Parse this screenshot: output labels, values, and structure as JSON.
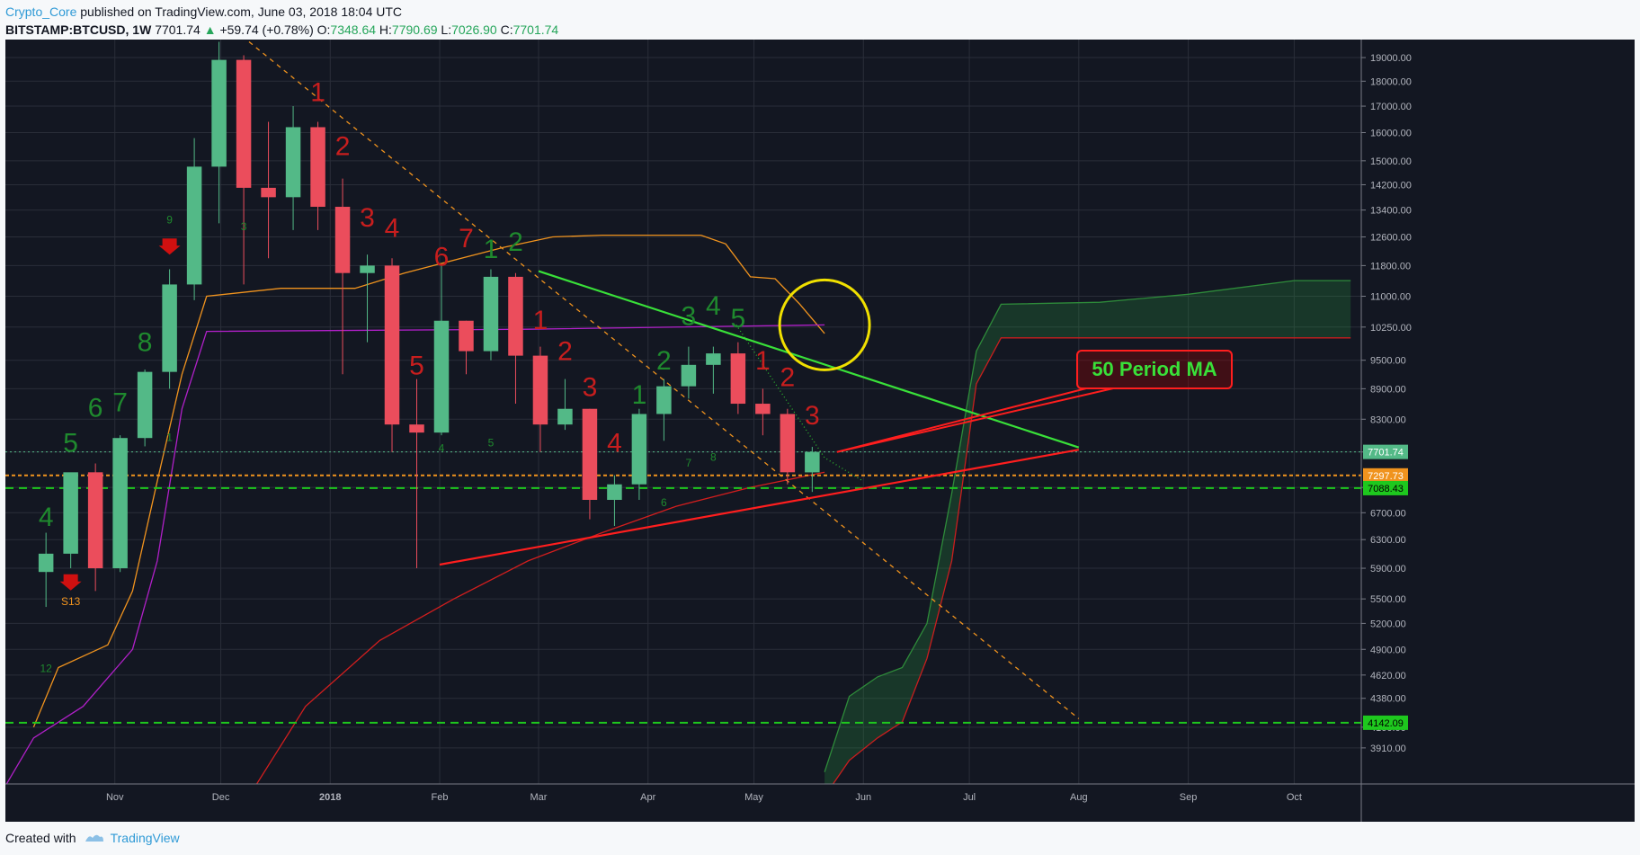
{
  "header": {
    "author": "Crypto_Core",
    "published": "published on TradingView.com, June 03, 2018 18:04 UTC",
    "symbol": "BITSTAMP:BTCUSD, 1W",
    "last": "7701.74",
    "change": "+59.74 (+0.78%)",
    "o_label": "O:",
    "o": "7348.64",
    "h_label": "H:",
    "h": "7790.69",
    "l_label": "L:",
    "l": "7026.90",
    "c_label": "C:",
    "c": "7701.74"
  },
  "footer": {
    "created_with": "Created with",
    "brand": "TradingView"
  },
  "colors": {
    "background": "#131722",
    "grid": "#2a2e39",
    "bull": "#53b987",
    "bear": "#eb4d5c",
    "seq_green": "#1f8a2e",
    "seq_red": "#c81e1e",
    "orange": "#f0931e",
    "purple": "#b020c8",
    "trend_green": "#39e039",
    "trend_red": "#ff1e1e",
    "callout_text": "#39e039",
    "circle": "#f0e000"
  },
  "chart_data": {
    "type": "candlestick",
    "y_scale": "log",
    "ylim": [
      3600,
      19800
    ],
    "y_ticks": [
      "19000.00",
      "18000.00",
      "17000.00",
      "16000.00",
      "15000.00",
      "14200.00",
      "13400.00",
      "12600.00",
      "11800.00",
      "11000.00",
      "10250.00",
      "9500.00",
      "8900.00",
      "8300.00",
      "7700.00",
      "7100.00",
      "6700.00",
      "6300.00",
      "5900.00",
      "5500.00",
      "5200.00",
      "4900.00",
      "4620.00",
      "4380.00",
      "4100.00",
      "3910.00"
    ],
    "x_ticks": [
      {
        "label": "Nov",
        "x": "2017-11-01"
      },
      {
        "label": "Dec",
        "x": "2017-12-01"
      },
      {
        "label": "2018",
        "x": "2018-01-01"
      },
      {
        "label": "Feb",
        "x": "2018-02-01"
      },
      {
        "label": "Mar",
        "x": "2018-03-01"
      },
      {
        "label": "Apr",
        "x": "2018-04-01"
      },
      {
        "label": "May",
        "x": "2018-05-01"
      },
      {
        "label": "Jun",
        "x": "2018-06-01"
      },
      {
        "label": "Jul",
        "x": "2018-07-01"
      },
      {
        "label": "Aug",
        "x": "2018-08-01"
      },
      {
        "label": "Sep",
        "x": "2018-09-01"
      },
      {
        "label": "Oct",
        "x": "2018-10-01"
      }
    ],
    "xlim": [
      "2017-10-01",
      "2018-10-20"
    ],
    "candles": [
      {
        "d": "2017-10-09",
        "o": 5850,
        "h": 6400,
        "l": 5400,
        "c": 6100
      },
      {
        "d": "2017-10-16",
        "o": 6100,
        "h": 7300,
        "l": 5900,
        "c": 7350
      },
      {
        "d": "2017-10-23",
        "o": 7350,
        "h": 7500,
        "l": 5600,
        "c": 5900
      },
      {
        "d": "2017-10-30",
        "o": 5900,
        "h": 8000,
        "l": 5850,
        "c": 7950
      },
      {
        "d": "2017-11-06",
        "o": 7950,
        "h": 9300,
        "l": 7800,
        "c": 9250
      },
      {
        "d": "2017-11-13",
        "o": 9250,
        "h": 11700,
        "l": 8900,
        "c": 11300
      },
      {
        "d": "2017-11-20",
        "o": 11300,
        "h": 15800,
        "l": 10900,
        "c": 14800
      },
      {
        "d": "2017-11-27",
        "o": 14800,
        "h": 19700,
        "l": 13000,
        "c": 18900
      },
      {
        "d": "2017-12-04",
        "o": 18900,
        "h": 19100,
        "l": 11300,
        "c": 14100
      },
      {
        "d": "2017-12-11",
        "o": 14100,
        "h": 16400,
        "l": 12000,
        "c": 13800
      },
      {
        "d": "2017-12-18",
        "o": 13800,
        "h": 17000,
        "l": 12800,
        "c": 16200
      },
      {
        "d": "2017-12-25",
        "o": 16200,
        "h": 16400,
        "l": 12800,
        "c": 13500
      },
      {
        "d": "2018-01-01",
        "o": 13500,
        "h": 14400,
        "l": 9200,
        "c": 11600
      },
      {
        "d": "2018-01-08",
        "o": 11600,
        "h": 12100,
        "l": 9900,
        "c": 11800
      },
      {
        "d": "2018-01-15",
        "o": 11800,
        "h": 12000,
        "l": 7700,
        "c": 8200
      },
      {
        "d": "2018-01-22",
        "o": 8200,
        "h": 9100,
        "l": 5900,
        "c": 8050
      },
      {
        "d": "2018-01-29",
        "o": 8050,
        "h": 11800,
        "l": 8000,
        "c": 10400
      },
      {
        "d": "2018-02-05",
        "o": 10400,
        "h": 10400,
        "l": 9200,
        "c": 9700
      },
      {
        "d": "2018-02-12",
        "o": 9700,
        "h": 11700,
        "l": 9500,
        "c": 11500
      },
      {
        "d": "2018-02-19",
        "o": 11500,
        "h": 11600,
        "l": 8600,
        "c": 9600
      },
      {
        "d": "2018-02-26",
        "o": 9600,
        "h": 9800,
        "l": 7700,
        "c": 8200
      },
      {
        "d": "2018-03-05",
        "o": 8200,
        "h": 9100,
        "l": 8100,
        "c": 8500
      },
      {
        "d": "2018-03-12",
        "o": 8500,
        "h": 8500,
        "l": 6600,
        "c": 6900
      },
      {
        "d": "2018-03-19",
        "o": 6900,
        "h": 7300,
        "l": 6500,
        "c": 7150
      },
      {
        "d": "2018-03-26",
        "o": 7150,
        "h": 8500,
        "l": 6900,
        "c": 8400
      },
      {
        "d": "2018-04-02",
        "o": 8400,
        "h": 9100,
        "l": 7900,
        "c": 8950
      },
      {
        "d": "2018-04-09",
        "o": 8950,
        "h": 9800,
        "l": 8700,
        "c": 9400
      },
      {
        "d": "2018-04-16",
        "o": 9400,
        "h": 9800,
        "l": 8800,
        "c": 9650
      },
      {
        "d": "2018-04-23",
        "o": 9650,
        "h": 9900,
        "l": 8400,
        "c": 8600
      },
      {
        "d": "2018-04-30",
        "o": 8600,
        "h": 8900,
        "l": 8000,
        "c": 8400
      },
      {
        "d": "2018-05-07",
        "o": 8400,
        "h": 8500,
        "l": 7150,
        "c": 7350
      },
      {
        "d": "2018-05-14",
        "o": 7348.64,
        "h": 7790.69,
        "l": 7026.9,
        "c": 7701.74
      }
    ],
    "td_counts": [
      {
        "d": "2017-10-09",
        "t": "4",
        "c": "green",
        "p": 6500,
        "s": "big"
      },
      {
        "d": "2017-10-16",
        "t": "5",
        "c": "green",
        "p": 7700,
        "s": "big"
      },
      {
        "d": "2017-10-23",
        "t": "6",
        "c": "green",
        "p": 8350,
        "s": "big"
      },
      {
        "d": "2017-10-30",
        "t": "7",
        "c": "green",
        "p": 8450,
        "s": "big"
      },
      {
        "d": "2017-11-06",
        "t": "8",
        "c": "green",
        "p": 9700,
        "s": "big"
      },
      {
        "d": "2017-11-13",
        "t": "9",
        "c": "green",
        "p": 13000,
        "s": "small"
      },
      {
        "d": "2017-11-13",
        "t": "1",
        "c": "green",
        "p": 7900,
        "s": "small"
      },
      {
        "d": "2017-12-04",
        "t": "3",
        "c": "green",
        "p": 12800,
        "s": "small"
      },
      {
        "d": "2017-10-09",
        "t": "12",
        "c": "green",
        "p": 4650,
        "s": "small"
      },
      {
        "d": "2017-12-25",
        "t": "1",
        "c": "red",
        "p": 17200,
        "s": "big"
      },
      {
        "d": "2018-01-01",
        "t": "2",
        "c": "red",
        "p": 15200,
        "s": "big"
      },
      {
        "d": "2018-01-08",
        "t": "3",
        "c": "red",
        "p": 12900,
        "s": "big"
      },
      {
        "d": "2018-01-15",
        "t": "4",
        "c": "red",
        "p": 12600,
        "s": "big"
      },
      {
        "d": "2018-01-22",
        "t": "5",
        "c": "red",
        "p": 9200,
        "s": "big"
      },
      {
        "d": "2018-01-29",
        "t": "6",
        "c": "red",
        "p": 11800,
        "s": "big"
      },
      {
        "d": "2018-02-05",
        "t": "7",
        "c": "red",
        "p": 12300,
        "s": "big"
      },
      {
        "d": "2018-02-12",
        "t": "1",
        "c": "green",
        "p": 12000,
        "s": "big"
      },
      {
        "d": "2018-02-19",
        "t": "2",
        "c": "green",
        "p": 12200,
        "s": "big"
      },
      {
        "d": "2018-01-29",
        "t": "4",
        "c": "green",
        "p": 7700,
        "s": "small"
      },
      {
        "d": "2018-02-12",
        "t": "5",
        "c": "green",
        "p": 7800,
        "s": "small"
      },
      {
        "d": "2018-02-26",
        "t": "1",
        "c": "red",
        "p": 10200,
        "s": "big"
      },
      {
        "d": "2018-03-05",
        "t": "2",
        "c": "red",
        "p": 9500,
        "s": "big"
      },
      {
        "d": "2018-03-12",
        "t": "3",
        "c": "red",
        "p": 8750,
        "s": "big"
      },
      {
        "d": "2018-03-19",
        "t": "4",
        "c": "red",
        "p": 7700,
        "s": "big"
      },
      {
        "d": "2018-03-26",
        "t": "1",
        "c": "green",
        "p": 8600,
        "s": "big"
      },
      {
        "d": "2018-04-02",
        "t": "2",
        "c": "green",
        "p": 9300,
        "s": "big"
      },
      {
        "d": "2018-04-09",
        "t": "3",
        "c": "green",
        "p": 10300,
        "s": "big"
      },
      {
        "d": "2018-04-16",
        "t": "4",
        "c": "green",
        "p": 10550,
        "s": "big"
      },
      {
        "d": "2018-04-23",
        "t": "5",
        "c": "green",
        "p": 10250,
        "s": "big"
      },
      {
        "d": "2018-04-02",
        "t": "6",
        "c": "green",
        "p": 6800,
        "s": "small"
      },
      {
        "d": "2018-04-09",
        "t": "7",
        "c": "green",
        "p": 7450,
        "s": "small"
      },
      {
        "d": "2018-04-16",
        "t": "8",
        "c": "green",
        "p": 7550,
        "s": "small"
      },
      {
        "d": "2018-04-30",
        "t": "1",
        "c": "red",
        "p": 9300,
        "s": "big"
      },
      {
        "d": "2018-05-07",
        "t": "2",
        "c": "red",
        "p": 8950,
        "s": "big"
      },
      {
        "d": "2018-05-14",
        "t": "3",
        "c": "red",
        "p": 8200,
        "s": "big"
      }
    ],
    "signals": [
      {
        "d": "2017-11-13",
        "p": 12300,
        "label": "",
        "dir": "down"
      },
      {
        "d": "2017-10-16",
        "p": 5700,
        "label": "S13",
        "dir": "down"
      }
    ],
    "orange_band": [
      [
        "2017-10-09",
        4100
      ],
      [
        "2017-10-16",
        4700
      ],
      [
        "2017-10-30",
        4950
      ],
      [
        "2017-11-06",
        5600
      ],
      [
        "2017-11-13",
        7200
      ],
      [
        "2017-11-20",
        9200
      ],
      [
        "2017-11-27",
        11000
      ],
      [
        "2017-12-18",
        11200
      ],
      [
        "2018-01-08",
        11200
      ],
      [
        "2018-01-22",
        11600
      ],
      [
        "2018-02-19",
        12300
      ],
      [
        "2018-03-05",
        12600
      ],
      [
        "2018-03-19",
        12650
      ],
      [
        "2018-04-16",
        12650
      ],
      [
        "2018-04-23",
        12400
      ],
      [
        "2018-04-30",
        11500
      ],
      [
        "2018-05-07",
        11450
      ],
      [
        "2018-05-14",
        10800
      ],
      [
        "2018-05-21",
        10100
      ]
    ],
    "purple_band": [
      [
        "2017-09-25",
        3300
      ],
      [
        "2017-10-09",
        4000
      ],
      [
        "2017-10-23",
        4300
      ],
      [
        "2017-11-06",
        4900
      ],
      [
        "2017-11-13",
        6000
      ],
      [
        "2017-11-20",
        8500
      ],
      [
        "2017-11-27",
        10150
      ],
      [
        "2018-02-26",
        10200
      ],
      [
        "2018-05-21",
        10300
      ]
    ],
    "ma50": [
      [
        "2017-11-27",
        3000
      ],
      [
        "2017-12-25",
        4300
      ],
      [
        "2018-01-15",
        5000
      ],
      [
        "2018-02-05",
        5500
      ],
      [
        "2018-02-26",
        6000
      ],
      [
        "2018-03-19",
        6400
      ],
      [
        "2018-04-09",
        6800
      ],
      [
        "2018-04-30",
        7100
      ],
      [
        "2018-05-21",
        7350
      ]
    ],
    "trend_green": [
      [
        "2018-03-01",
        11650
      ],
      [
        "2018-08-01",
        7780
      ]
    ],
    "trend_red": [
      [
        "2018-02-01",
        5950
      ],
      [
        "2018-08-01",
        7740
      ]
    ],
    "trend_red_short": [
      [
        "2018-05-21",
        7700
      ],
      [
        "2018-06-05",
        8500
      ]
    ],
    "trend_dashed_orange": [
      [
        "2017-12-09",
        19700
      ],
      [
        "2018-08-01",
        4180
      ]
    ],
    "trend_dotted_green": [
      [
        "2018-04-26",
        10300
      ],
      [
        "2018-05-21",
        7600
      ],
      [
        "2018-06-01",
        7200
      ]
    ],
    "h_lines": [
      {
        "p": 7701.74,
        "color": "#53b987",
        "style": "dotted",
        "label": "7701.74",
        "bg": "#53b987",
        "fg": "#ffffff"
      },
      {
        "p": 7297.73,
        "color": "#f0931e",
        "style": "dashed",
        "label": "7297.73",
        "bg": "#f0931e",
        "fg": "#ffffff"
      },
      {
        "p": 7088.43,
        "color": "#1ec81e",
        "style": "dashed",
        "label": "7088.43",
        "bg": "#1ec81e",
        "fg": "#000000"
      },
      {
        "p": 4142.09,
        "color": "#1ec81e",
        "style": "dashed",
        "label": "4142.09",
        "bg": "#1ec81e",
        "fg": "#000000"
      }
    ],
    "cloud_upper": [
      [
        "2018-05-21",
        3700
      ],
      [
        "2018-05-28",
        4400
      ],
      [
        "2018-06-05",
        4600
      ],
      [
        "2018-06-12",
        4700
      ],
      [
        "2018-06-19",
        5200
      ],
      [
        "2018-06-26",
        7000
      ],
      [
        "2018-07-03",
        9700
      ],
      [
        "2018-07-10",
        10800
      ],
      [
        "2018-08-07",
        10850
      ],
      [
        "2018-09-01",
        11050
      ],
      [
        "2018-10-01",
        11400
      ],
      [
        "2018-10-17",
        11400
      ]
    ],
    "cloud_lower": [
      [
        "2018-05-21",
        3500
      ],
      [
        "2018-05-28",
        3800
      ],
      [
        "2018-06-05",
        4000
      ],
      [
        "2018-06-12",
        4150
      ],
      [
        "2018-06-19",
        4800
      ],
      [
        "2018-06-26",
        6000
      ],
      [
        "2018-07-03",
        9000
      ],
      [
        "2018-07-10",
        10000
      ],
      [
        "2018-10-17",
        10000
      ]
    ],
    "annotation": {
      "text": "50 Period MA",
      "anchor": [
        "2018-05-21",
        7700
      ]
    },
    "circle": {
      "d": "2018-05-21",
      "p": 10300
    }
  }
}
